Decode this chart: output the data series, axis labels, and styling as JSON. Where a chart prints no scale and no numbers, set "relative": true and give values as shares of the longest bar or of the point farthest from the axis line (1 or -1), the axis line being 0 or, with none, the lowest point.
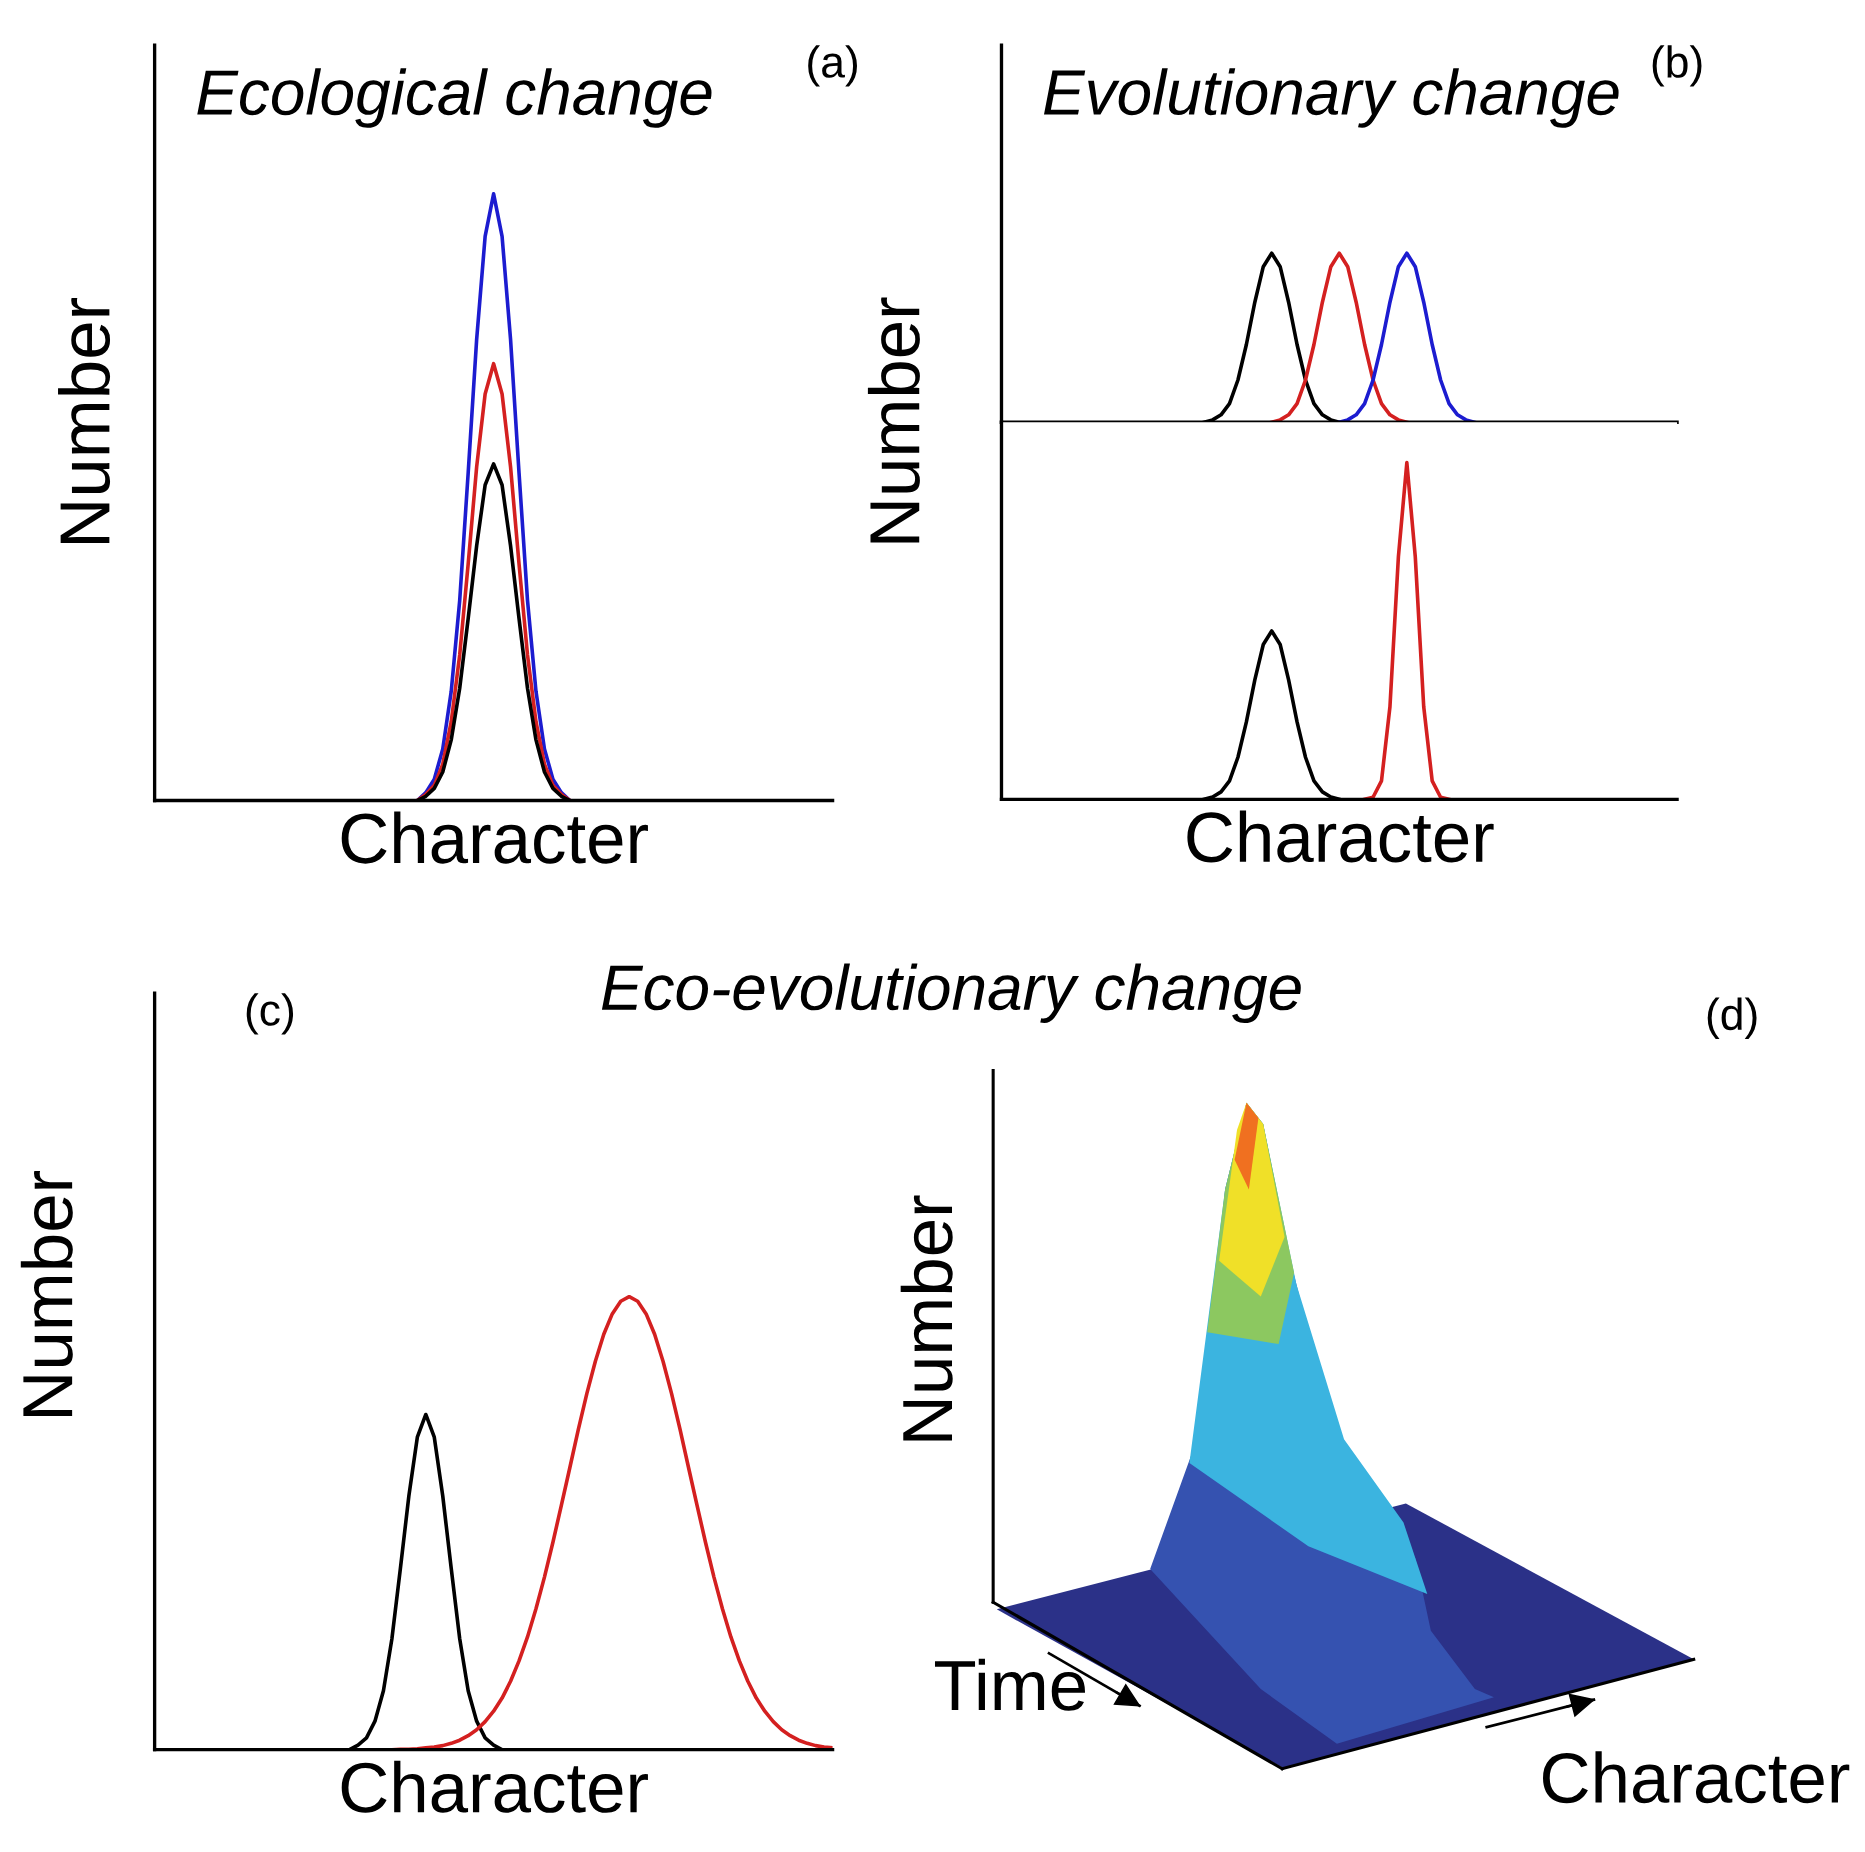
{
  "chart_data": [
    {
      "type": "line",
      "relative": true,
      "title": "Ecological change",
      "xlabel": "Character",
      "ylabel": "Number",
      "annotations": [
        "(a)"
      ],
      "categories": [
        null,
        null,
        null,
        null,
        null,
        null,
        null,
        null,
        null,
        null,
        null,
        null,
        null,
        null,
        null,
        null,
        null,
        null,
        null,
        null,
        null,
        null,
        null,
        null,
        null,
        null,
        null,
        null,
        null,
        null,
        null,
        null,
        null,
        null,
        null,
        null,
        null,
        null,
        null,
        null,
        null,
        null,
        null,
        null,
        null,
        null,
        null,
        null,
        null,
        null,
        null,
        null,
        null,
        null,
        null,
        null,
        null,
        null,
        null,
        null,
        null,
        null,
        null,
        null,
        null,
        null,
        null,
        null,
        null,
        null,
        null,
        null,
        null,
        null,
        null,
        null,
        null,
        null,
        null,
        null,
        null
      ],
      "series": [
        {
          "color": "#1c1cd0",
          "values": [
            null,
            null,
            null,
            null,
            null,
            null,
            null,
            null,
            null,
            null,
            null,
            null,
            null,
            null,
            null,
            null,
            null,
            null,
            null,
            null,
            null,
            null,
            null,
            null,
            null,
            null,
            null,
            null,
            null,
            null,
            null,
            0,
            0.013,
            0.035,
            0.085,
            0.18,
            0.33,
            0.54,
            0.76,
            0.93,
            1,
            0.93,
            0.76,
            0.54,
            0.33,
            0.18,
            0.085,
            0.035,
            0.013,
            0,
            null,
            null,
            null,
            null,
            null,
            null,
            null,
            null,
            null,
            null,
            null,
            null,
            null,
            null,
            null,
            null,
            null,
            null,
            null,
            null,
            null,
            null,
            null,
            null,
            null,
            null,
            null,
            null,
            null,
            null,
            null
          ]
        },
        {
          "color": "#d42020",
          "values": [
            null,
            null,
            null,
            null,
            null,
            null,
            null,
            null,
            null,
            null,
            null,
            null,
            null,
            null,
            null,
            null,
            null,
            null,
            null,
            null,
            null,
            null,
            null,
            null,
            null,
            null,
            null,
            null,
            null,
            null,
            null,
            0,
            0.01,
            0.025,
            0.06,
            0.13,
            0.24,
            0.39,
            0.55,
            0.67,
            0.72,
            0.67,
            0.55,
            0.39,
            0.24,
            0.13,
            0.06,
            0.025,
            0.01,
            0,
            null,
            null,
            null,
            null,
            null,
            null,
            null,
            null,
            null,
            null,
            null,
            null,
            null,
            null,
            null,
            null,
            null,
            null,
            null,
            null,
            null,
            null,
            null,
            null,
            null,
            null,
            null,
            null,
            null,
            null,
            null
          ]
        },
        {
          "color": "#000000",
          "values": [
            null,
            null,
            null,
            null,
            null,
            null,
            null,
            null,
            null,
            null,
            null,
            null,
            null,
            null,
            null,
            null,
            null,
            null,
            null,
            null,
            null,
            null,
            null,
            null,
            null,
            null,
            null,
            null,
            null,
            null,
            null,
            0,
            0.007,
            0.02,
            0.047,
            0.1,
            0.185,
            0.3,
            0.42,
            0.52,
            0.555,
            0.52,
            0.42,
            0.3,
            0.185,
            0.1,
            0.047,
            0.02,
            0.007,
            0,
            null,
            null,
            null,
            null,
            null,
            null,
            null,
            null,
            null,
            null,
            null,
            null,
            null,
            null,
            null,
            null,
            null,
            null,
            null,
            null,
            null,
            null,
            null,
            null,
            null,
            null,
            null,
            null,
            null,
            null,
            null
          ]
        }
      ]
    },
    {
      "type": "line",
      "relative": true,
      "title": "Evolutionary change",
      "annotations": [
        "(b)"
      ],
      "categories": [
        null,
        null,
        null,
        null,
        null,
        null,
        null,
        null,
        null,
        null,
        null,
        null,
        null,
        null,
        null,
        null,
        null,
        null,
        null,
        null,
        null,
        null,
        null,
        null,
        null,
        null,
        null,
        null,
        null,
        null,
        null,
        null,
        null,
        null,
        null,
        null,
        null,
        null,
        null,
        null,
        null,
        null,
        null,
        null,
        null,
        null,
        null,
        null,
        null,
        null,
        null,
        null,
        null,
        null,
        null,
        null,
        null,
        null,
        null,
        null,
        null,
        null,
        null,
        null,
        null,
        null,
        null,
        null,
        null,
        null,
        null,
        null,
        null,
        null,
        null,
        null,
        null,
        null,
        null,
        null,
        null
      ],
      "series": [
        {
          "color": "#000000",
          "values": [
            null,
            null,
            null,
            null,
            null,
            null,
            null,
            null,
            null,
            null,
            null,
            null,
            null,
            null,
            null,
            null,
            null,
            null,
            null,
            null,
            null,
            null,
            null,
            null,
            0,
            0.014,
            0.044,
            0.11,
            0.25,
            0.46,
            0.71,
            0.92,
            1,
            0.92,
            0.71,
            0.46,
            0.25,
            0.11,
            0.044,
            0.014,
            0,
            null,
            null,
            null,
            null,
            null,
            null,
            null,
            null,
            null,
            null,
            null,
            null,
            null,
            null,
            null,
            null,
            null,
            null,
            null,
            null,
            null,
            null,
            null,
            null,
            null,
            null,
            null,
            null,
            null,
            null,
            null,
            null,
            null,
            null,
            null,
            null,
            null,
            null,
            null,
            null
          ]
        },
        {
          "color": "#d42020",
          "values": [
            null,
            null,
            null,
            null,
            null,
            null,
            null,
            null,
            null,
            null,
            null,
            null,
            null,
            null,
            null,
            null,
            null,
            null,
            null,
            null,
            null,
            null,
            null,
            null,
            null,
            null,
            null,
            null,
            null,
            null,
            null,
            null,
            0,
            0.014,
            0.044,
            0.11,
            0.25,
            0.46,
            0.71,
            0.92,
            1,
            0.92,
            0.71,
            0.46,
            0.25,
            0.11,
            0.044,
            0.014,
            0,
            null,
            null,
            null,
            null,
            null,
            null,
            null,
            null,
            null,
            null,
            null,
            null,
            null,
            null,
            null,
            null,
            null,
            null,
            null,
            null,
            null,
            null,
            null,
            null,
            null,
            null,
            null,
            null,
            null,
            null,
            null,
            null
          ]
        },
        {
          "color": "#1c1cd0",
          "values": [
            null,
            null,
            null,
            null,
            null,
            null,
            null,
            null,
            null,
            null,
            null,
            null,
            null,
            null,
            null,
            null,
            null,
            null,
            null,
            null,
            null,
            null,
            null,
            null,
            null,
            null,
            null,
            null,
            null,
            null,
            null,
            null,
            null,
            null,
            null,
            null,
            null,
            null,
            null,
            null,
            0,
            0.014,
            0.044,
            0.11,
            0.25,
            0.46,
            0.71,
            0.92,
            1,
            0.92,
            0.71,
            0.46,
            0.25,
            0.11,
            0.044,
            0.014,
            0,
            null,
            null,
            null,
            null,
            null,
            null,
            null,
            null,
            null,
            null,
            null,
            null,
            null,
            null,
            null,
            null,
            null,
            null,
            null,
            null,
            null,
            null,
            null,
            null
          ]
        }
      ]
    },
    {
      "type": "line",
      "relative": true,
      "xlabel": "Character",
      "ylabel": "Number",
      "categories": [
        null,
        null,
        null,
        null,
        null,
        null,
        null,
        null,
        null,
        null,
        null,
        null,
        null,
        null,
        null,
        null,
        null,
        null,
        null,
        null,
        null,
        null,
        null,
        null,
        null,
        null,
        null,
        null,
        null,
        null,
        null,
        null,
        null,
        null,
        null,
        null,
        null,
        null,
        null,
        null,
        null,
        null,
        null,
        null,
        null,
        null,
        null,
        null,
        null,
        null,
        null,
        null,
        null,
        null,
        null,
        null,
        null,
        null,
        null,
        null,
        null,
        null,
        null,
        null,
        null,
        null,
        null,
        null,
        null,
        null,
        null,
        null,
        null,
        null,
        null,
        null,
        null,
        null,
        null,
        null,
        null
      ],
      "series": [
        {
          "color": "#000000",
          "values": [
            null,
            null,
            null,
            null,
            null,
            null,
            null,
            null,
            null,
            null,
            null,
            null,
            null,
            null,
            null,
            null,
            null,
            null,
            null,
            null,
            null,
            null,
            null,
            null,
            0,
            0.007,
            0.022,
            0.055,
            0.125,
            0.23,
            0.355,
            0.46,
            0.5,
            0.46,
            0.355,
            0.23,
            0.125,
            0.055,
            0.022,
            0.007,
            0,
            null,
            null,
            null,
            null,
            null,
            null,
            null,
            null,
            null,
            null,
            null,
            null,
            null,
            null,
            null,
            null,
            null,
            null,
            null,
            null,
            null,
            null,
            null,
            null,
            null,
            null,
            null,
            null,
            null,
            null,
            null,
            null,
            null,
            null,
            null,
            null,
            null,
            null,
            null,
            null
          ]
        },
        {
          "color": "#d42020",
          "values": [
            null,
            null,
            null,
            null,
            null,
            null,
            null,
            null,
            null,
            null,
            null,
            null,
            null,
            null,
            null,
            null,
            null,
            null,
            null,
            null,
            null,
            null,
            null,
            null,
            null,
            null,
            null,
            null,
            null,
            null,
            null,
            null,
            null,
            null,
            null,
            null,
            null,
            null,
            null,
            null,
            null,
            null,
            null,
            0,
            0.006,
            0.055,
            0.275,
            0.72,
            1,
            0.72,
            0.275,
            0.055,
            0.006,
            0,
            null,
            null,
            null,
            null,
            null,
            null,
            null,
            null,
            null,
            null,
            null,
            null,
            null,
            null,
            null,
            null,
            null,
            null,
            null,
            null,
            null,
            null,
            null,
            null,
            null,
            null,
            null
          ]
        }
      ]
    },
    {
      "type": "line",
      "relative": true,
      "title": "Eco-evolutionary change",
      "xlabel": "Character",
      "ylabel": "Number",
      "annotations": [
        "(c)"
      ],
      "categories": [
        null,
        null,
        null,
        null,
        null,
        null,
        null,
        null,
        null,
        null,
        null,
        null,
        null,
        null,
        null,
        null,
        null,
        null,
        null,
        null,
        null,
        null,
        null,
        null,
        null,
        null,
        null,
        null,
        null,
        null,
        null,
        null,
        null,
        null,
        null,
        null,
        null,
        null,
        null,
        null,
        null,
        null,
        null,
        null,
        null,
        null,
        null,
        null,
        null,
        null,
        null,
        null,
        null,
        null,
        null,
        null,
        null,
        null,
        null,
        null,
        null,
        null,
        null,
        null,
        null,
        null,
        null,
        null,
        null,
        null,
        null,
        null,
        null,
        null,
        null,
        null,
        null,
        null,
        null,
        null,
        null
      ],
      "series": [
        {
          "color": "#000000",
          "values": [
            null,
            null,
            null,
            null,
            null,
            null,
            null,
            null,
            null,
            null,
            null,
            null,
            null,
            null,
            null,
            null,
            null,
            null,
            null,
            null,
            null,
            null,
            null,
            0,
            0.01,
            0.026,
            0.063,
            0.13,
            0.245,
            0.4,
            0.56,
            0.69,
            0.74,
            0.69,
            0.56,
            0.4,
            0.245,
            0.13,
            0.063,
            0.026,
            0.01,
            0,
            null,
            null,
            null,
            null,
            null,
            null,
            null,
            null,
            null,
            null,
            null,
            null,
            null,
            null,
            null,
            null,
            null,
            null,
            null,
            null,
            null,
            null,
            null,
            null,
            null,
            null,
            null,
            null,
            null,
            null,
            null,
            null,
            null,
            null,
            null,
            null,
            null,
            null,
            null
          ]
        },
        {
          "color": "#d42020",
          "values": [
            null,
            null,
            null,
            null,
            null,
            null,
            null,
            null,
            null,
            null,
            null,
            null,
            null,
            null,
            null,
            null,
            null,
            null,
            null,
            null,
            null,
            null,
            null,
            null,
            null,
            null,
            null,
            null,
            0,
            0.001,
            0.001,
            0.002,
            0.004,
            0.006,
            0.009,
            0.014,
            0.021,
            0.031,
            0.044,
            0.062,
            0.085,
            0.114,
            0.151,
            0.196,
            0.249,
            0.311,
            0.381,
            0.458,
            0.54,
            0.623,
            0.707,
            0.786,
            0.857,
            0.917,
            0.962,
            0.99,
            1,
            0.99,
            0.962,
            0.917,
            0.857,
            0.786,
            0.707,
            0.623,
            0.54,
            0.458,
            0.381,
            0.311,
            0.249,
            0.196,
            0.151,
            0.114,
            0.085,
            0.062,
            0.044,
            0.031,
            0.021,
            0.014,
            0.009,
            0.006,
            0.004
          ]
        }
      ]
    },
    {
      "type": "other",
      "xlabel": "Character",
      "ylabel": "Number",
      "annotations": [
        "(d)",
        "Time"
      ]
    }
  ]
}
